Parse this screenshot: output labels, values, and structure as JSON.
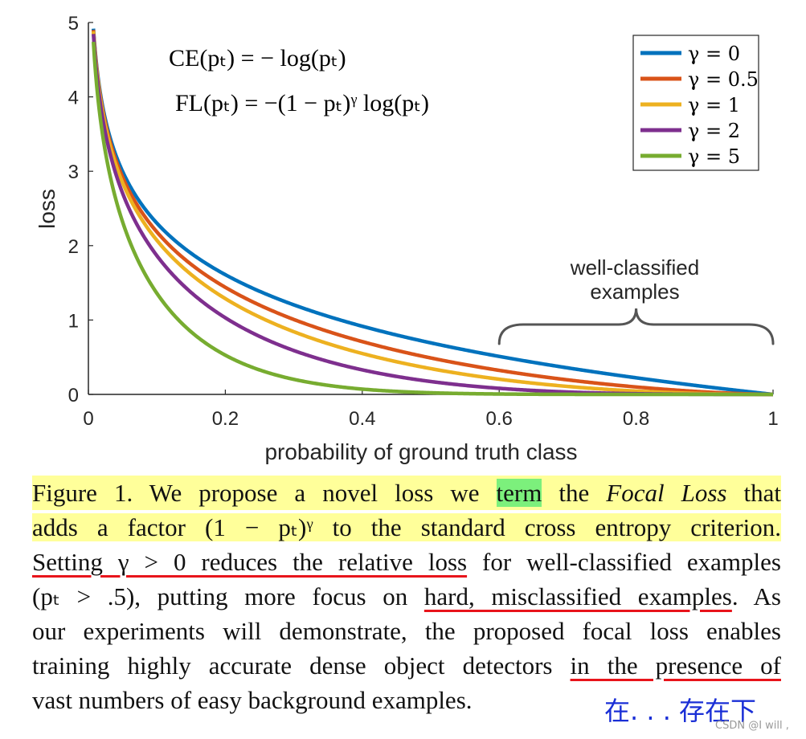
{
  "chart_data": {
    "type": "line",
    "xlabel": "probability of ground truth class",
    "ylabel": "loss",
    "xlim": [
      0,
      1
    ],
    "ylim": [
      0,
      5
    ],
    "x_ticks": [
      "0",
      "0.2",
      "0.4",
      "0.6",
      "0.8",
      "1"
    ],
    "y_ticks": [
      "0",
      "1",
      "2",
      "3",
      "4",
      "5"
    ],
    "grid": false,
    "legend_position": "top-right",
    "function": "-(1-p)^gamma * ln(p)",
    "series": [
      {
        "name": "γ = 0",
        "gamma": 0,
        "color": "#0072bd"
      },
      {
        "name": "γ = 0.5",
        "gamma": 0.5,
        "color": "#d95319"
      },
      {
        "name": "γ = 1",
        "gamma": 1,
        "color": "#edb120"
      },
      {
        "name": "γ = 2",
        "gamma": 2,
        "color": "#7e2f8e"
      },
      {
        "name": "γ = 5",
        "gamma": 5,
        "color": "#77ac30"
      }
    ],
    "formulas": {
      "ce": "CE(pₜ) = − log(pₜ)",
      "fl": "FL(pₜ) = −(1 − pₜ)ᵞ log(pₜ)"
    },
    "annotation": {
      "line1": "well-classified",
      "line2": "examples",
      "x_range": [
        0.6,
        1.0
      ]
    }
  },
  "caption": {
    "l1": {
      "a": "Figure 1. We propose a novel loss we ",
      "b": "term",
      "c": " the ",
      "d": "Focal Loss",
      "e": " that"
    },
    "l2": "adds a factor (1 − pₜ)ᵞ to the standard cross entropy criterion.",
    "l3": {
      "a": "Setting γ > 0 reduces the relative loss",
      "b": " for well-classified examples"
    },
    "l4": {
      "a": "(pₜ > .5), putting more focus on ",
      "b": "hard, misclassified examples",
      "c": ". As"
    },
    "l5": "our experiments will demonstrate, the proposed focal loss enables",
    "l6": {
      "a": "training highly accurate dense object detectors ",
      "b": "in the presence of"
    },
    "l7": "vast numbers of easy background examples."
  },
  "note": "在. . . 存在下",
  "watermark": "CSDN @I will ,"
}
